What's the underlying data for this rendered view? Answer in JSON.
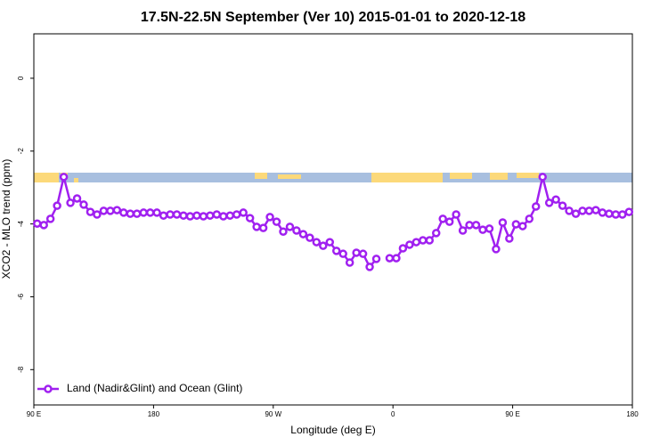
{
  "chart_data": {
    "type": "line",
    "title": "17.5N-22.5N September (Ver 10)   2015-01-01 to 2020-12-18",
    "xlabel": "Longitude (deg E)",
    "ylabel": "XCO2 - MLO trend (ppm)",
    "x": [
      92.5,
      97.5,
      102.5,
      107.5,
      112.5,
      117.5,
      122.5,
      127.5,
      132.5,
      137.5,
      142.5,
      147.5,
      152.5,
      157.5,
      162.5,
      167.5,
      172.5,
      177.5,
      182.5,
      187.5,
      192.5,
      197.5,
      202.5,
      207.5,
      212.5,
      217.5,
      222.5,
      227.5,
      232.5,
      237.5,
      242.5,
      247.5,
      252.5,
      257.5,
      262.5,
      267.5,
      272.5,
      277.5,
      282.5,
      287.5,
      292.5,
      297.5,
      302.5,
      307.5,
      312.5,
      317.5,
      322.5,
      327.5,
      332.5,
      337.5,
      342.5,
      347.5,
      352.5,
      357.5,
      362.5,
      367.5,
      372.5,
      377.5,
      382.5,
      387.5,
      392.5,
      397.5,
      402.5,
      407.5,
      412.5,
      417.5,
      422.5,
      427.5,
      432.5,
      437.5,
      442.5,
      447.5,
      452.5,
      457.5,
      462.5,
      467.5,
      472.5,
      477.5,
      482.5,
      487.5,
      492.5,
      497.5,
      502.5,
      507.5,
      512.5,
      517.5,
      522.5,
      527.5,
      532.5,
      537.5
    ],
    "series": [
      {
        "name": "Land (Nadir&Glint) and Ocean (Glint)",
        "color": "#a020f0",
        "values": [
          -3.99,
          -4.03,
          -3.86,
          -3.5,
          -2.71,
          -3.42,
          -3.3,
          -3.47,
          -3.67,
          -3.74,
          -3.64,
          -3.64,
          -3.62,
          -3.69,
          -3.72,
          -3.72,
          -3.69,
          -3.69,
          -3.69,
          -3.77,
          -3.74,
          -3.74,
          -3.77,
          -3.79,
          -3.77,
          -3.79,
          -3.77,
          -3.74,
          -3.79,
          -3.77,
          -3.74,
          -3.69,
          -3.84,
          -4.08,
          -4.11,
          -3.81,
          -3.94,
          -4.21,
          -4.08,
          -4.18,
          -4.28,
          -4.38,
          -4.5,
          -4.6,
          -4.5,
          -4.74,
          -4.82,
          -5.06,
          -4.79,
          -4.82,
          -5.18,
          -4.96,
          null,
          -4.94,
          -4.94,
          -4.67,
          -4.57,
          -4.5,
          -4.45,
          -4.45,
          -4.25,
          -3.86,
          -3.94,
          -3.74,
          -4.18,
          -4.03,
          -4.03,
          -4.16,
          -4.13,
          -4.69,
          -3.96,
          -4.4,
          -4.01,
          -4.06,
          -3.86,
          -3.52,
          -2.71,
          -3.42,
          -3.33,
          -3.5,
          -3.64,
          -3.72,
          -3.64,
          -3.64,
          -3.62,
          -3.69,
          -3.72,
          -3.74,
          -3.74,
          -3.67
        ]
      }
    ],
    "xlim": [
      90,
      540
    ],
    "xticks": [
      {
        "value": 90,
        "label": "90 E"
      },
      {
        "value": 180,
        "label": "180"
      },
      {
        "value": 270,
        "label": "90 W"
      },
      {
        "value": 360,
        "label": "0"
      },
      {
        "value": 450,
        "label": "90 E"
      },
      {
        "value": 540,
        "label": "180"
      }
    ],
    "ylim": [
      -8.97,
      1.22
    ],
    "yticks": [
      0,
      -2,
      -4,
      -6,
      -8
    ],
    "legend": "bottom-left"
  }
}
